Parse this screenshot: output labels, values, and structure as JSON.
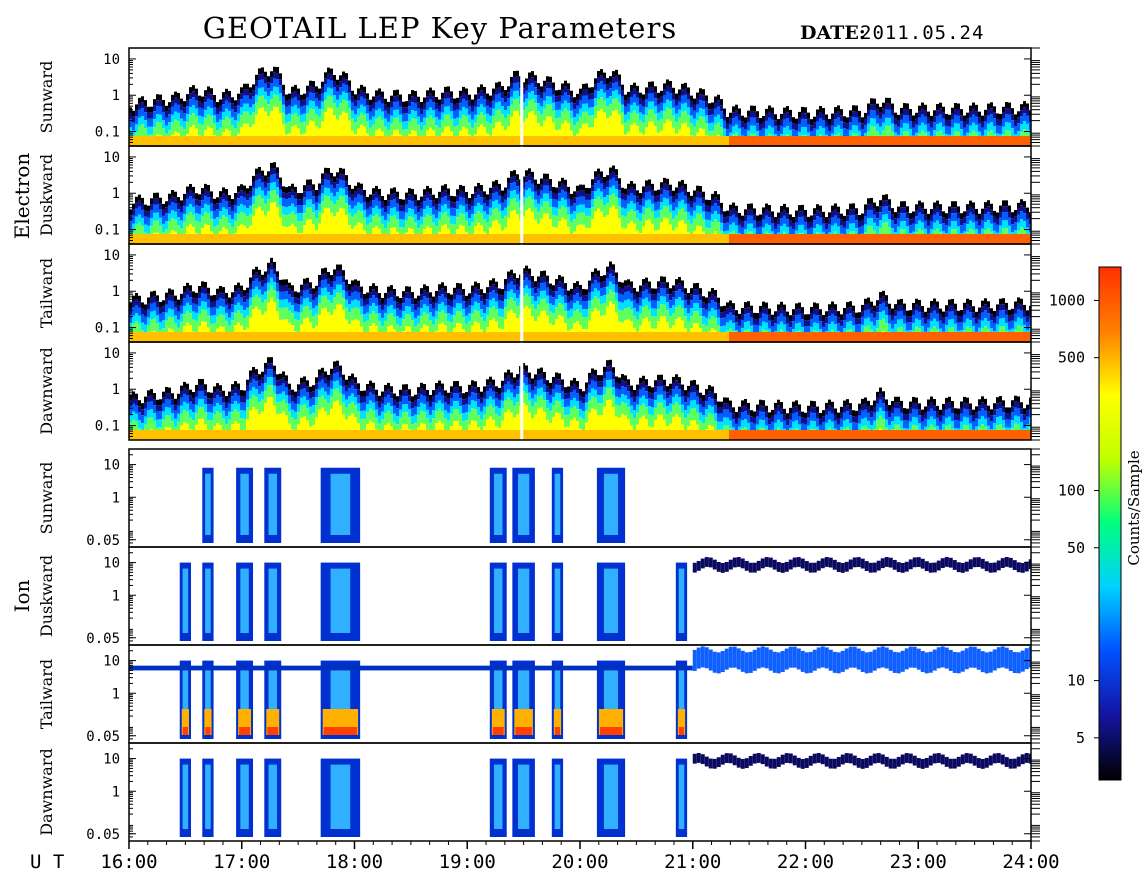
{
  "header": {
    "title": "GEOTAIL LEP Key Parameters",
    "date_label": "DATE:",
    "date_value": "2011.05.24"
  },
  "chart_data": {
    "type": "heatmap",
    "x_axis_label": "U T",
    "x_ticks": [
      "16:00",
      "17:00",
      "18:00",
      "19:00",
      "20:00",
      "21:00",
      "22:00",
      "23:00",
      "24:00"
    ],
    "x_range_hours": [
      16,
      24
    ],
    "colorbar": {
      "label": "Counts/Sample",
      "scale": "log",
      "range": [
        3,
        1500
      ],
      "ticks": [
        "5",
        "10",
        "50",
        "100",
        "500",
        "1000"
      ],
      "colors": [
        "#000000",
        "#1414a0",
        "#0050ff",
        "#00d0ff",
        "#00ff80",
        "#c0ff00",
        "#ffff00",
        "#ff8000",
        "#ff3000"
      ]
    },
    "groups": [
      {
        "name": "Electron",
        "y_ticks": [
          "10",
          "1",
          "0.1"
        ],
        "y_scale": "log",
        "y_range": [
          0.04,
          20
        ],
        "panels": [
          {
            "label": "Sunward"
          },
          {
            "label": "Duskward"
          },
          {
            "label": "Tailward"
          },
          {
            "label": "Dawnward"
          }
        ],
        "upper_boundary_by_hour": [
          [
            16.0,
            0.6
          ],
          [
            16.4,
            0.9
          ],
          [
            16.6,
            1.5
          ],
          [
            16.8,
            1.0
          ],
          [
            17.0,
            1.3
          ],
          [
            17.25,
            6.0
          ],
          [
            17.4,
            1.2
          ],
          [
            17.65,
            2.0
          ],
          [
            17.8,
            5.0
          ],
          [
            18.0,
            1.5
          ],
          [
            18.2,
            1.1
          ],
          [
            18.5,
            1.0
          ],
          [
            18.8,
            1.3
          ],
          [
            19.0,
            1.2
          ],
          [
            19.3,
            1.8
          ],
          [
            19.45,
            4.0
          ],
          [
            19.7,
            2.5
          ],
          [
            20.0,
            1.2
          ],
          [
            20.25,
            5.0
          ],
          [
            20.4,
            1.5
          ],
          [
            20.8,
            2.0
          ],
          [
            21.0,
            1.3
          ],
          [
            21.2,
            0.8
          ],
          [
            21.3,
            0.4
          ],
          [
            22.0,
            0.35
          ],
          [
            22.5,
            0.4
          ],
          [
            22.65,
            0.8
          ],
          [
            22.8,
            0.45
          ],
          [
            23.5,
            0.45
          ],
          [
            24.0,
            0.5
          ]
        ]
      },
      {
        "name": "Ion",
        "y_ticks": [
          "10",
          "1",
          "0.05"
        ],
        "y_scale": "log",
        "y_range": [
          0.03,
          30
        ],
        "panels": [
          {
            "label": "Sunward"
          },
          {
            "label": "Duskward"
          },
          {
            "label": "Tailward"
          },
          {
            "label": "Dawnward"
          }
        ],
        "activity_intervals_hours": [
          [
            16.45,
            16.55
          ],
          [
            16.65,
            16.75
          ],
          [
            16.95,
            17.1
          ],
          [
            17.2,
            17.35
          ],
          [
            17.7,
            18.05
          ],
          [
            19.2,
            19.35
          ],
          [
            19.4,
            19.6
          ],
          [
            19.75,
            19.85
          ],
          [
            20.15,
            20.4
          ],
          [
            20.85,
            20.95
          ]
        ]
      }
    ]
  }
}
